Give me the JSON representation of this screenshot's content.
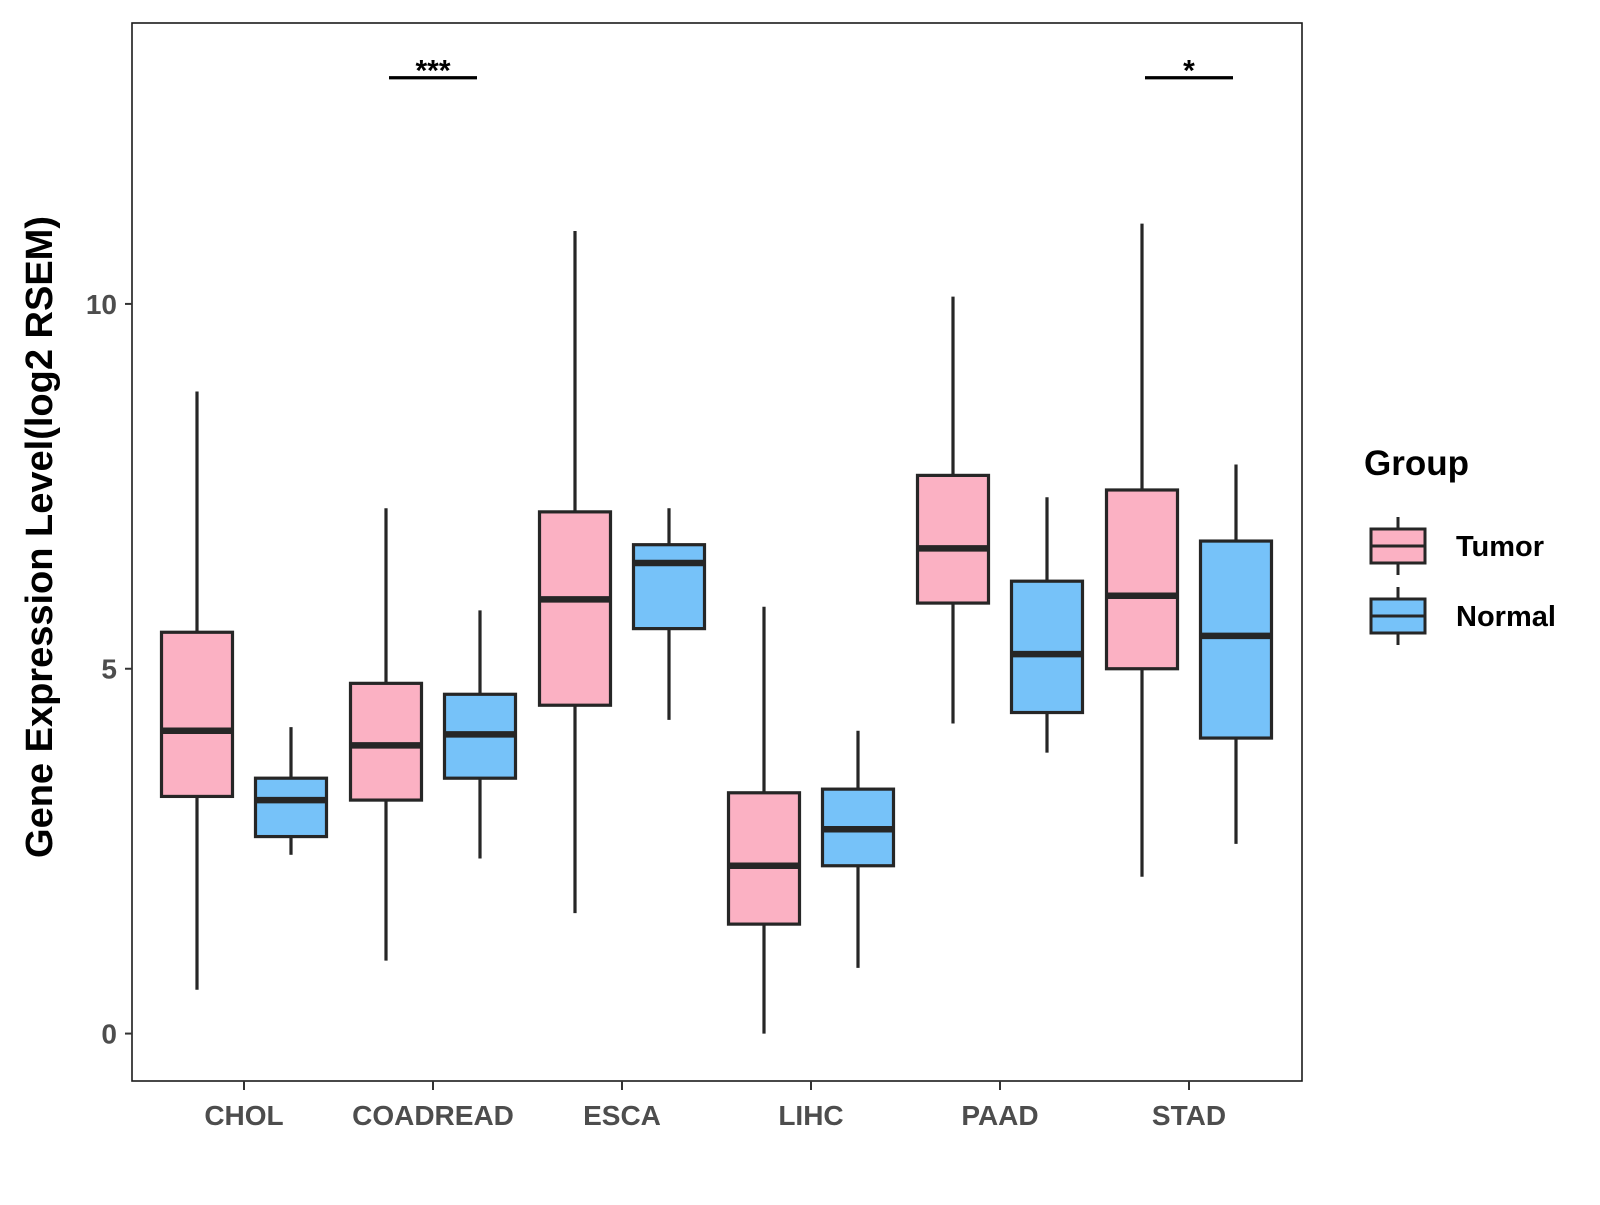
{
  "chart_data": {
    "type": "boxplot",
    "title": "",
    "xlabel": "",
    "ylabel": "Gene Expression Level(log2 RSEM)",
    "ylim": [
      -0.65,
      13.85
    ],
    "yticks": [
      0,
      5,
      10
    ],
    "categories": [
      "CHOL",
      "COADREAD",
      "ESCA",
      "LIHC",
      "PAAD",
      "STAD"
    ],
    "legend": {
      "title": "Group",
      "position": "right",
      "entries": [
        {
          "name": "Tumor",
          "color": "#fbb1c3"
        },
        {
          "name": "Normal",
          "color": "#76c2f9"
        }
      ]
    },
    "series": [
      {
        "name": "Tumor",
        "color": "#fbb1c3",
        "boxes": [
          {
            "category": "CHOL",
            "min": 0.6,
            "q1": 3.25,
            "median": 4.15,
            "q3": 5.5,
            "max": 8.8
          },
          {
            "category": "COADREAD",
            "min": 1.0,
            "q1": 3.2,
            "median": 3.95,
            "q3": 4.8,
            "max": 7.2
          },
          {
            "category": "ESCA",
            "min": 1.65,
            "q1": 4.5,
            "median": 5.95,
            "q3": 7.15,
            "max": 11.0
          },
          {
            "category": "LIHC",
            "min": 0.0,
            "q1": 1.5,
            "median": 2.3,
            "q3": 3.3,
            "max": 5.85
          },
          {
            "category": "PAAD",
            "min": 4.25,
            "q1": 5.9,
            "median": 6.65,
            "q3": 7.65,
            "max": 10.1
          },
          {
            "category": "STAD",
            "min": 2.15,
            "q1": 5.0,
            "median": 6.0,
            "q3": 7.45,
            "max": 11.1
          }
        ]
      },
      {
        "name": "Normal",
        "color": "#76c2f9",
        "boxes": [
          {
            "category": "CHOL",
            "min": 2.45,
            "q1": 2.7,
            "median": 3.2,
            "q3": 3.5,
            "max": 4.2
          },
          {
            "category": "COADREAD",
            "min": 2.4,
            "q1": 3.5,
            "median": 4.1,
            "q3": 4.65,
            "max": 5.8
          },
          {
            "category": "ESCA",
            "min": 4.3,
            "q1": 5.55,
            "median": 6.45,
            "q3": 6.7,
            "max": 7.2
          },
          {
            "category": "LIHC",
            "min": 0.9,
            "q1": 2.3,
            "median": 2.8,
            "q3": 3.35,
            "max": 4.15
          },
          {
            "category": "PAAD",
            "min": 3.85,
            "q1": 4.4,
            "median": 5.2,
            "q3": 6.2,
            "max": 7.35
          },
          {
            "category": "STAD",
            "min": 2.6,
            "q1": 4.05,
            "median": 5.45,
            "q3": 6.75,
            "max": 7.8
          }
        ]
      }
    ],
    "annotations": [
      {
        "category": "COADREAD",
        "label": "***",
        "y": 13.1
      },
      {
        "category": "STAD",
        "label": "*",
        "y": 13.1
      }
    ]
  }
}
